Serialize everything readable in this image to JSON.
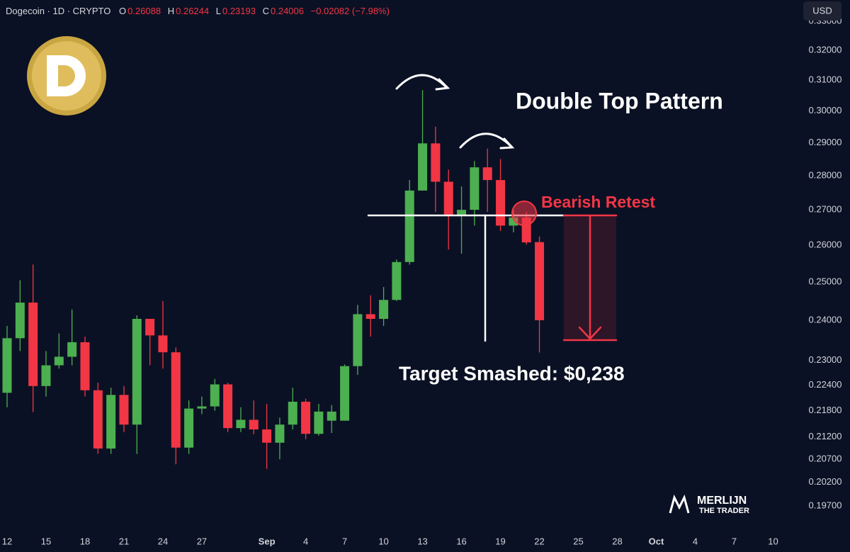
{
  "chart_data": {
    "type": "candlestick",
    "title": "Dogecoin · 1D · CRYPTO",
    "ohlc_letters": [
      "O",
      "H",
      "L",
      "C"
    ],
    "change": "−0.02082 (−7.98%)",
    "currency": "USD",
    "annotations": [
      "Double Top Pattern",
      "Bearish Retest",
      "Target Smashed: $0,238"
    ],
    "watermark": [
      "MERLIJN",
      "THE TRADER"
    ],
    "log_scale": true,
    "grid": false,
    "up_color": "#4caf50",
    "down_color": "#f23645",
    "categories": [
      "12",
      null,
      null,
      "15",
      null,
      null,
      "18",
      null,
      null,
      "21",
      null,
      null,
      "24",
      null,
      null,
      "27",
      null,
      null,
      null,
      null,
      "Sep",
      null,
      null,
      "4",
      null,
      null,
      "7",
      null,
      null,
      "10",
      null,
      null,
      "13",
      null,
      null,
      "16",
      null,
      null,
      "19",
      null,
      null,
      "22",
      null,
      null,
      "25",
      null,
      null,
      "28",
      null,
      null,
      "Oct",
      null,
      null,
      "4",
      null,
      null,
      "7",
      null,
      null,
      "10"
    ],
    "open": [
      0.2222,
      0.2355,
      0.2446,
      0.2238,
      0.2288,
      0.2309,
      0.2345,
      0.2228,
      0.2094,
      0.2217,
      0.2148,
      0.2404,
      0.2362,
      0.232,
      0.2096,
      0.2185,
      0.219,
      0.2242,
      0.214,
      0.2159,
      0.2137,
      0.2107,
      0.2148,
      0.2201,
      0.2127,
      0.2157,
      0.2157,
      0.2286,
      0.2416,
      0.2404,
      0.2453,
      0.2554,
      0.2756,
      0.2898,
      0.2782,
      0.2686,
      0.27,
      0.2825,
      0.2787,
      0.2655,
      0.2678,
      0.26088,
      null,
      null,
      null,
      null,
      null,
      null,
      null,
      null,
      null,
      null,
      null,
      null,
      null,
      null,
      null,
      null,
      null,
      null
    ],
    "high": [
      0.2386,
      0.2505,
      0.2547,
      0.2323,
      0.2367,
      0.2428,
      0.2359,
      0.2246,
      0.2234,
      0.2238,
      0.2413,
      0.2404,
      0.245,
      0.2332,
      0.2204,
      0.2213,
      0.2255,
      0.2246,
      0.2188,
      0.2204,
      0.2196,
      0.2164,
      0.2234,
      0.2208,
      0.2196,
      0.2193,
      0.229,
      0.244,
      0.2465,
      0.2487,
      0.2561,
      0.2787,
      0.3067,
      0.295,
      0.2818,
      0.2768,
      0.2844,
      0.2882,
      0.285,
      0.27,
      0.2694,
      0.26244,
      null,
      null,
      null,
      null,
      null,
      null,
      null,
      null,
      null,
      null,
      null,
      null,
      null,
      null,
      null,
      null,
      null,
      null
    ],
    "low": [
      0.2188,
      0.2323,
      0.2177,
      0.2213,
      0.228,
      0.2288,
      0.2213,
      0.2082,
      0.2082,
      0.2131,
      0.2082,
      0.2288,
      0.228,
      0.2059,
      0.2082,
      0.2172,
      0.218,
      0.2131,
      0.2131,
      0.2126,
      0.2049,
      0.207,
      0.2137,
      0.2115,
      0.2123,
      0.2129,
      0.2157,
      0.2265,
      0.2359,
      0.2386,
      0.245,
      0.2547,
      0.2756,
      0.2694,
      0.2588,
      0.2577,
      0.2655,
      0.2694,
      0.264,
      0.2636,
      0.2602,
      0.23193,
      null,
      null,
      null,
      null,
      null,
      null,
      null,
      null,
      null,
      null,
      null,
      null,
      null,
      null,
      null,
      null,
      null,
      null
    ],
    "close": [
      0.2355,
      0.2446,
      0.2238,
      0.2288,
      0.2309,
      0.2345,
      0.2228,
      0.2094,
      0.2217,
      0.2148,
      0.2404,
      0.2362,
      0.232,
      0.2096,
      0.2185,
      0.219,
      0.2242,
      0.214,
      0.2159,
      0.2137,
      0.2107,
      0.2148,
      0.2201,
      0.2127,
      0.2178,
      0.2178,
      0.2286,
      0.2416,
      0.2404,
      0.2453,
      0.2554,
      0.2756,
      0.2898,
      0.2782,
      0.2686,
      0.27,
      0.2825,
      0.2787,
      0.2655,
      0.2678,
      0.2608,
      0.24006,
      null,
      null,
      null,
      null,
      null,
      null,
      null,
      null,
      null,
      null,
      null,
      null,
      null,
      null,
      null,
      null,
      null,
      null
    ],
    "ylim": [
      0.1917,
      0.3376
    ],
    "yticks": [
      {
        "value": 0.33,
        "label": "0.33000"
      },
      {
        "value": 0.32,
        "label": "0.32000"
      },
      {
        "value": 0.31,
        "label": "0.31000"
      },
      {
        "value": 0.3,
        "label": "0.30000"
      },
      {
        "value": 0.29,
        "label": "0.29000"
      },
      {
        "value": 0.28,
        "label": "0.28000"
      },
      {
        "value": 0.27,
        "label": "0.27000"
      },
      {
        "value": 0.26,
        "label": "0.26000"
      },
      {
        "value": 0.25,
        "label": "0.25000"
      },
      {
        "value": 0.24,
        "label": "0.24000"
      },
      {
        "value": 0.23,
        "label": "0.23000"
      },
      {
        "value": 0.224,
        "label": "0.22400"
      },
      {
        "value": 0.218,
        "label": "0.21800"
      },
      {
        "value": 0.212,
        "label": "0.21200"
      },
      {
        "value": 0.207,
        "label": "0.20700"
      },
      {
        "value": 0.202,
        "label": "0.20200"
      },
      {
        "value": 0.197,
        "label": "0.19700"
      }
    ]
  }
}
